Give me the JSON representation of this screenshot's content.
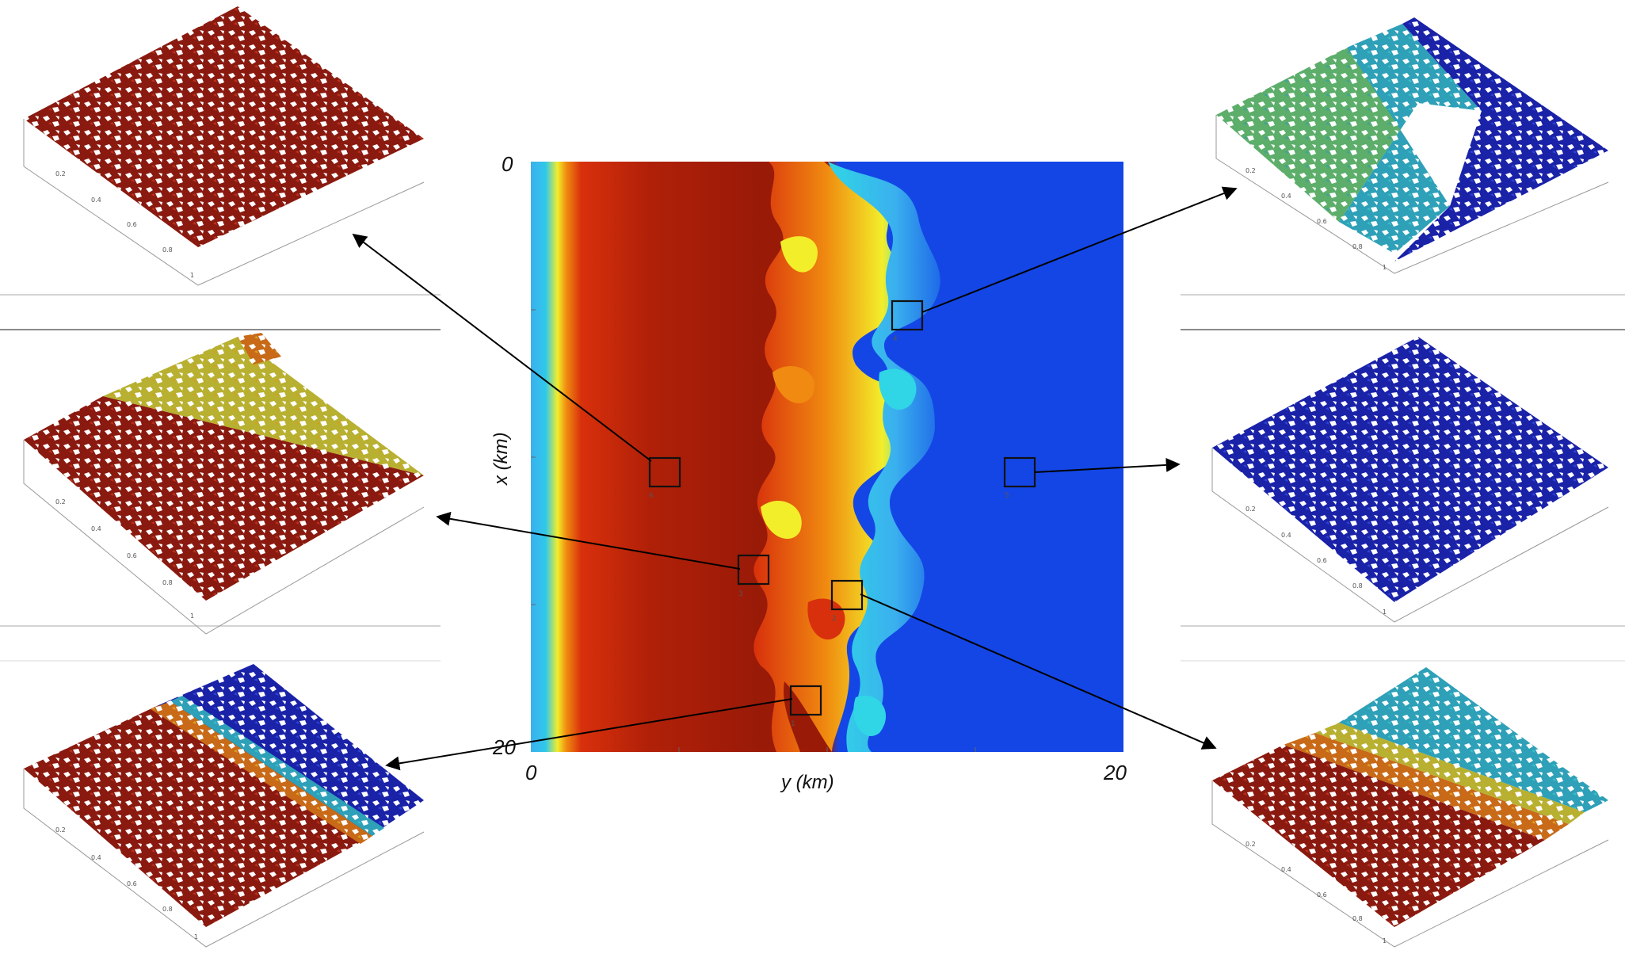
{
  "figure": {
    "axes": {
      "x_top_label": "0",
      "x_bottom_label": "20",
      "x_axis_title": "x (km)",
      "y_left_label": "0",
      "y_right_label": "20",
      "y_axis_title": "y (km)"
    },
    "colors": {
      "deep_red": "#9a1a08",
      "red": "#d8300c",
      "orange": "#f08a10",
      "yellow": "#f2ee2a",
      "cyan": "#30d6e6",
      "light_blue": "#3ab0ee",
      "blue": "#1446e6",
      "dark_blue": "#151a9c"
    },
    "map_boxes": [
      {
        "id": "1",
        "label": "1",
        "panel": "bottom-left"
      },
      {
        "id": "2",
        "label": "2",
        "panel": "bottom-right"
      },
      {
        "id": "3",
        "label": "3",
        "panel": "middle-left"
      },
      {
        "id": "4",
        "label": "4",
        "panel": "top-right"
      },
      {
        "id": "5",
        "label": "5",
        "panel": "middle-right"
      },
      {
        "id": "6",
        "label": "6",
        "panel": "top-left"
      }
    ],
    "panels": [
      {
        "id": "top-left",
        "scheme": "red",
        "axis_ticks": [
          "0.2",
          "0.4",
          "0.6",
          "0.8",
          "1"
        ]
      },
      {
        "id": "middle-left",
        "scheme": "red-yellow",
        "axis_ticks": [
          "0.2",
          "0.4",
          "0.6",
          "0.8",
          "1"
        ]
      },
      {
        "id": "bottom-left",
        "scheme": "red-blue",
        "axis_ticks": [
          "0.2",
          "0.4",
          "0.6",
          "0.8",
          "1"
        ]
      },
      {
        "id": "top-right",
        "scheme": "green-blue",
        "axis_ticks": [
          "0.2",
          "0.4",
          "0.6",
          "0.8",
          "1"
        ]
      },
      {
        "id": "middle-right",
        "scheme": "blue",
        "axis_ticks": [
          "0.2",
          "0.4",
          "0.6",
          "0.8",
          "1"
        ]
      },
      {
        "id": "bottom-right",
        "scheme": "red-cyan",
        "axis_ticks": [
          "0.2",
          "0.4",
          "0.6",
          "0.8",
          "1"
        ]
      }
    ]
  }
}
